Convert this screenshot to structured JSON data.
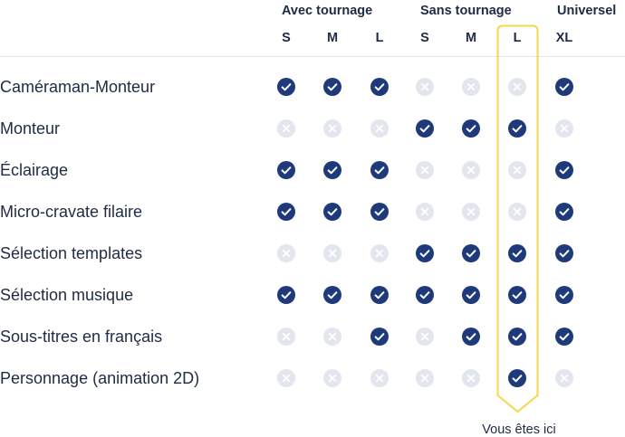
{
  "colors": {
    "text": "#1f2a44",
    "check_fill": "#1f3a7a",
    "cross_fill": "#e3e6ee",
    "cross_mark": "#ffffff",
    "highlight": "#f7d64a",
    "divider": "#e3e6ec"
  },
  "header": {
    "groups": [
      {
        "label": "Avec tournage",
        "sizes": [
          "S",
          "M",
          "L"
        ]
      },
      {
        "label": "Sans tournage",
        "sizes": [
          "S",
          "M",
          "L"
        ]
      },
      {
        "label": "Universel",
        "sizes": [
          "XL"
        ]
      }
    ]
  },
  "highlight": {
    "group_index": 1,
    "size": "L",
    "caption": "Vous êtes ici"
  },
  "rows": [
    {
      "label": "Caméraman-Monteur",
      "values": [
        true,
        true,
        true,
        false,
        false,
        false,
        true
      ],
      "icon_names": [
        "check-icon",
        "cross-icon"
      ]
    },
    {
      "label": "Monteur",
      "values": [
        false,
        false,
        false,
        true,
        true,
        true,
        false
      ]
    },
    {
      "label": "Éclairage",
      "values": [
        true,
        true,
        true,
        false,
        false,
        false,
        true
      ]
    },
    {
      "label": "Micro-cravate filaire",
      "values": [
        true,
        true,
        true,
        false,
        false,
        false,
        true
      ]
    },
    {
      "label": "Sélection templates",
      "values": [
        false,
        false,
        false,
        true,
        true,
        true,
        true
      ]
    },
    {
      "label": "Sélection musique",
      "values": [
        true,
        true,
        true,
        true,
        true,
        true,
        true
      ]
    },
    {
      "label": "Sous-titres en français",
      "values": [
        false,
        false,
        true,
        false,
        true,
        true,
        true
      ]
    },
    {
      "label": "Personnage (animation 2D)",
      "values": [
        false,
        false,
        false,
        false,
        false,
        true,
        false
      ]
    }
  ]
}
